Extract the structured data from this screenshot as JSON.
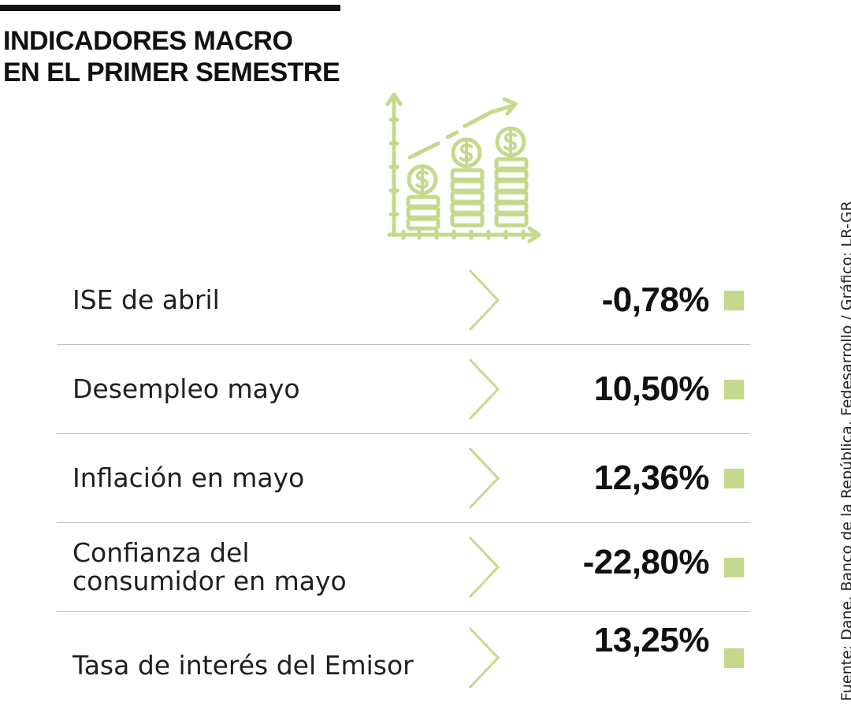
{
  "title_lines": [
    "INDICADORES MACRO",
    "EN EL PRIMER SEMESTRE"
  ],
  "icon": "rising-coin-stacks-chart-icon",
  "colors": {
    "accent": "#c5d98c",
    "text": "#111111",
    "divider": "#bdbdbd"
  },
  "chart_data": {
    "type": "table",
    "rows": [
      {
        "label": "ISE de abril",
        "value": "-0,78%",
        "number": -0.78
      },
      {
        "label": "Desempleo mayo",
        "value": "10,50%",
        "number": 10.5
      },
      {
        "label": "Inflación en mayo",
        "value": "12,36%",
        "number": 12.36
      },
      {
        "label": "Confianza del\nconsumidor en mayo",
        "value": "-22,80%",
        "number": -22.8
      },
      {
        "label": "Tasa de interés del Emisor",
        "value": "13,25%",
        "number": 13.25
      }
    ]
  },
  "source": "Fuente: Dane, Banco de la República, Fedesarrollo / Gráfico: LR-GR"
}
